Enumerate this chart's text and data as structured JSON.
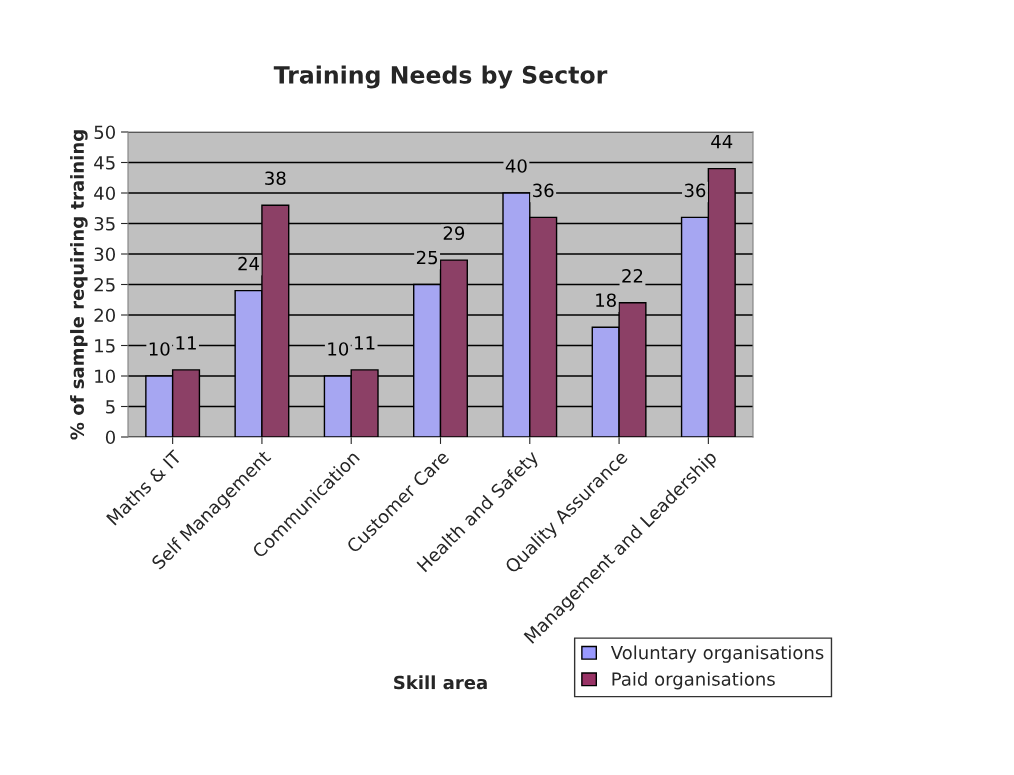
{
  "chart_data": {
    "type": "bar",
    "title": "Training Needs by Sector",
    "xlabel": "Skill area",
    "ylabel": "% of sample requiring training",
    "categories": [
      "Maths & IT",
      "Self Management",
      "Communication",
      "Customer Care",
      "Health and Safety",
      "Quality Assurance",
      "Management and Leadership"
    ],
    "series": [
      {
        "name": "Voluntary organisations",
        "color": "#9999ff",
        "values": [
          10,
          24,
          10,
          25,
          40,
          18,
          36
        ]
      },
      {
        "name": "Paid organisations",
        "color": "#993366",
        "values": [
          11,
          38,
          11,
          29,
          36,
          22,
          44
        ]
      }
    ],
    "ylim": [
      0,
      50
    ],
    "yticks": [
      0,
      5,
      10,
      15,
      20,
      25,
      30,
      35,
      40,
      45,
      50
    ],
    "grid": "y",
    "legend": "bottom right",
    "data_labels": true
  }
}
